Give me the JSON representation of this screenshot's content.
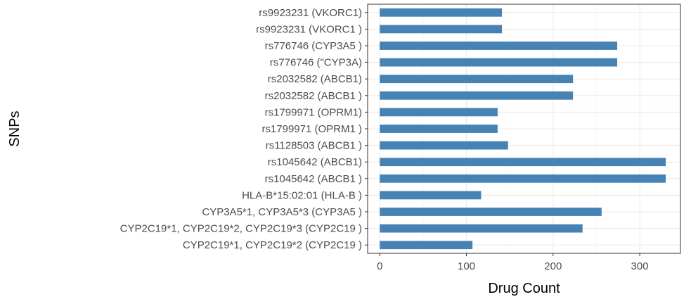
{
  "chart_data": {
    "type": "bar",
    "orientation": "horizontal",
    "xlabel": "Drug Count",
    "ylabel": "SNPs",
    "xlim": [
      -14,
      347
    ],
    "xticks": [
      0,
      100,
      200,
      300
    ],
    "grid": true,
    "bar_color": "#4682B4",
    "categories": [
      "rs9923231 (VKORC1)",
      "rs9923231 (VKORC1 )",
      "rs776746 (CYP3A5 )",
      "rs776746 (\"CYP3A)",
      "rs2032582 (ABCB1)",
      "rs2032582 (ABCB1 )",
      "rs1799971 (OPRM1)",
      "rs1799971 (OPRM1 )",
      "rs1128503 (ABCB1 )",
      "rs1045642 (ABCB1)",
      "rs1045642 (ABCB1 )",
      "HLA-B*15:02:01 (HLA-B )",
      "CYP3A5*1, CYP3A5*3 (CYP3A5 )",
      "CYP2C19*1, CYP2C19*2, CYP2C19*3 (CYP2C19 )",
      "CYP2C19*1, CYP2C19*2 (CYP2C19 )"
    ],
    "values": [
      141,
      141,
      274,
      274,
      223,
      223,
      136,
      136,
      148,
      330,
      330,
      117,
      256,
      234,
      107
    ]
  }
}
